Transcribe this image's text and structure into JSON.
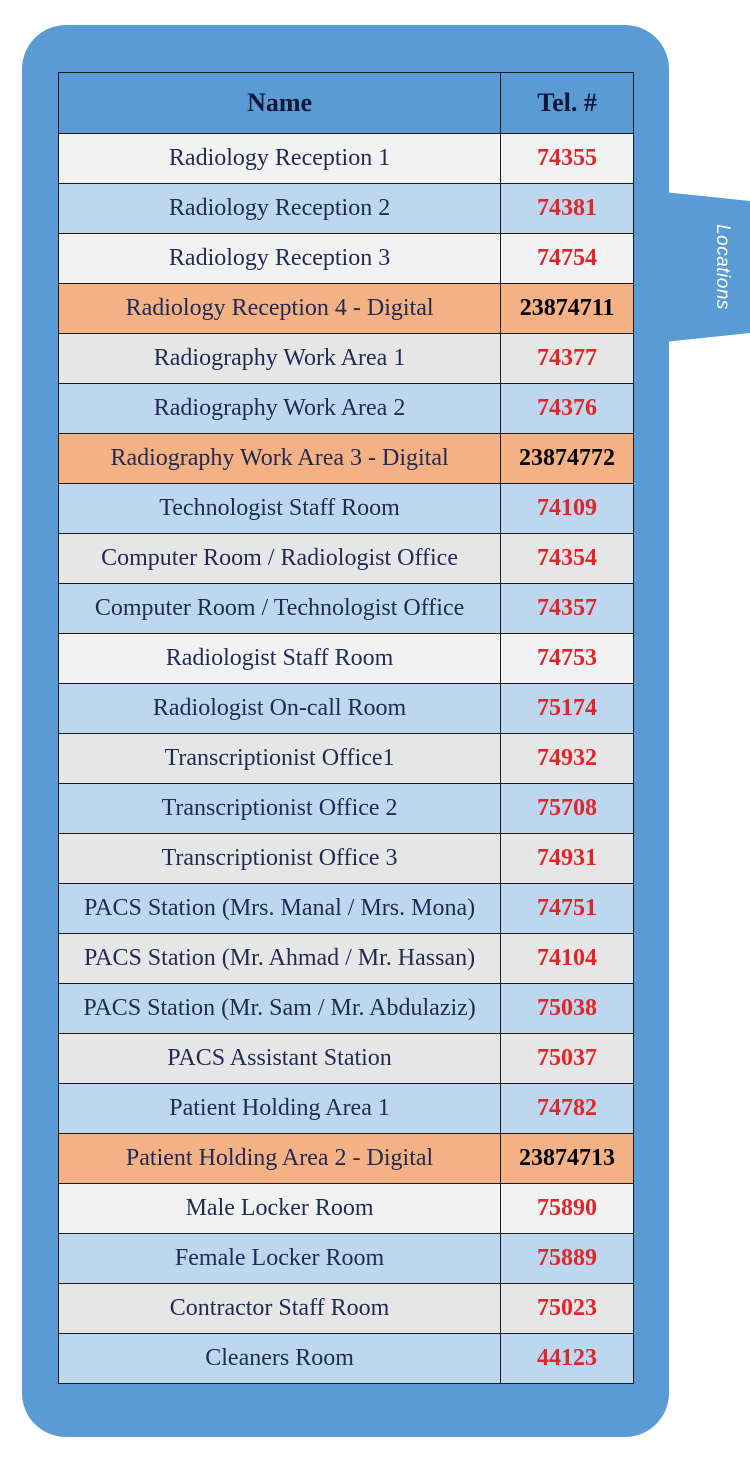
{
  "tab": {
    "label": "Locations"
  },
  "table": {
    "headers": {
      "name": "Name",
      "tel": "Tel. #"
    },
    "rows": [
      {
        "name": "Radiology Reception 1",
        "tel": "74355",
        "color": "white"
      },
      {
        "name": "Radiology Reception 2",
        "tel": "74381",
        "color": "blue"
      },
      {
        "name": "Radiology Reception 3",
        "tel": "74754",
        "color": "white"
      },
      {
        "name": "Radiology Reception 4 - Digital",
        "tel": "23874711",
        "color": "orange"
      },
      {
        "name": "Radiography Work Area 1",
        "tel": "74377",
        "color": "grey"
      },
      {
        "name": "Radiography Work Area 2",
        "tel": "74376",
        "color": "blue"
      },
      {
        "name": "Radiography Work Area 3 - Digital",
        "tel": "23874772",
        "color": "orange"
      },
      {
        "name": "Technologist Staff Room",
        "tel": "74109",
        "color": "blue"
      },
      {
        "name": "Computer Room / Radiologist Office",
        "tel": "74354",
        "color": "grey"
      },
      {
        "name": "Computer Room / Technologist Office",
        "tel": "74357",
        "color": "blue"
      },
      {
        "name": "Radiologist Staff Room",
        "tel": "74753",
        "color": "white"
      },
      {
        "name": "Radiologist On-call Room",
        "tel": "75174",
        "color": "blue"
      },
      {
        "name": "Transcriptionist Office1",
        "tel": "74932",
        "color": "grey"
      },
      {
        "name": "Transcriptionist Office 2",
        "tel": "75708",
        "color": "blue"
      },
      {
        "name": "Transcriptionist Office 3",
        "tel": "74931",
        "color": "grey"
      },
      {
        "name": "PACS Station (Mrs. Manal / Mrs. Mona)",
        "tel": "74751",
        "color": "blue"
      },
      {
        "name": "PACS Station (Mr. Ahmad / Mr. Hassan)",
        "tel": "74104",
        "color": "grey"
      },
      {
        "name": "PACS Station (Mr. Sam / Mr. Abdulaziz)",
        "tel": "75038",
        "color": "blue"
      },
      {
        "name": "PACS Assistant Station",
        "tel": "75037",
        "color": "grey"
      },
      {
        "name": "Patient Holding Area 1",
        "tel": "74782",
        "color": "blue"
      },
      {
        "name": "Patient Holding Area 2 - Digital",
        "tel": "23874713",
        "color": "orange"
      },
      {
        "name": "Male Locker Room",
        "tel": "75890",
        "color": "white"
      },
      {
        "name": "Female Locker Room",
        "tel": "75889",
        "color": "blue"
      },
      {
        "name": "Contractor Staff Room",
        "tel": "75023",
        "color": "grey"
      },
      {
        "name": "Cleaners Room",
        "tel": "44123",
        "color": "blue"
      }
    ]
  }
}
